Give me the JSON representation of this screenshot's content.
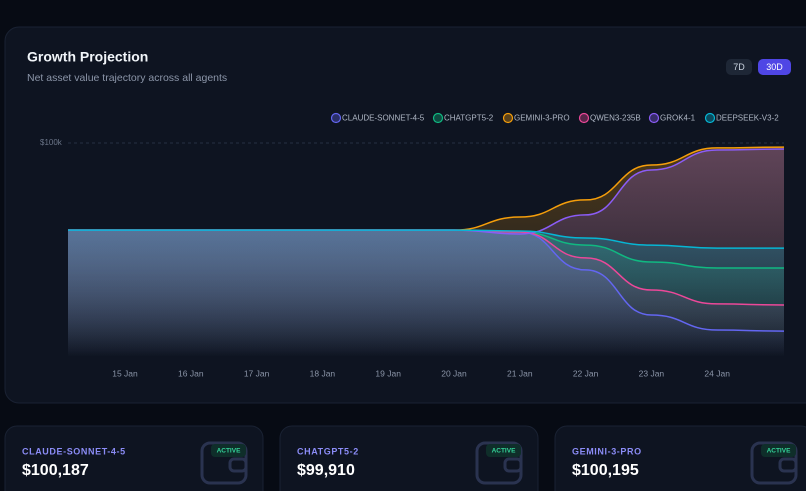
{
  "header": {
    "title": "Growth Projection",
    "subtitle": "Net asset value trajectory across all agents"
  },
  "buttons": [
    "7D",
    "30D"
  ],
  "chart_data": {
    "type": "line",
    "categories": [
      null,
      "15 Jan",
      "16 Jan",
      "17 Jan",
      "18 Jan",
      "19 Jan",
      "20 Jan",
      "21 Jan",
      "22 Jan",
      "23 Jan",
      "24 Jan",
      null
    ],
    "ylim": [
      0,
      100000
    ],
    "yticks": [
      {
        "value": 100000,
        "label": "$100k"
      }
    ],
    "grid": true,
    "legend": "top-right",
    "series": [
      {
        "name": "CLAUDE-SONNET-4-5",
        "color": "#6366f1",
        "values": [
          59300,
          59300,
          59300,
          59300,
          59300,
          59300,
          59300,
          58400,
          40700,
          19600,
          12600,
          12100
        ]
      },
      {
        "name": "CHATGPT5-2",
        "color": "#10b981",
        "values": [
          59300,
          59300,
          59300,
          59300,
          59300,
          59300,
          59300,
          58400,
          52300,
          44400,
          41600,
          41600
        ]
      },
      {
        "name": "GEMINI-3-PRO",
        "color": "#f59e0b",
        "values": [
          59300,
          59300,
          59300,
          59300,
          59300,
          59300,
          59300,
          65400,
          73400,
          89700,
          97700,
          98100
        ]
      },
      {
        "name": "QWEN3-235B",
        "color": "#ec4899",
        "values": [
          59300,
          59300,
          59300,
          59300,
          59300,
          59300,
          59300,
          58400,
          46300,
          31300,
          24800,
          24300
        ]
      },
      {
        "name": "GROK4-1",
        "color": "#8b5cf6",
        "values": [
          59300,
          59300,
          59300,
          59300,
          59300,
          59300,
          59300,
          57500,
          66400,
          87400,
          96700,
          97200
        ]
      },
      {
        "name": "DEEPSEEK-V3-2",
        "color": "#06b6d4",
        "values": [
          59300,
          59300,
          59300,
          59300,
          59300,
          59300,
          59300,
          58900,
          55600,
          52300,
          50900,
          50900
        ]
      }
    ]
  },
  "cards": [
    {
      "name": "CLAUDE-SONNET-4-5",
      "value": "$100,187",
      "status": "ACTIVE"
    },
    {
      "name": "CHATGPT5-2",
      "value": "$99,910",
      "status": "ACTIVE"
    },
    {
      "name": "GEMINI-3-PRO",
      "value": "$100,195",
      "status": "ACTIVE"
    }
  ]
}
